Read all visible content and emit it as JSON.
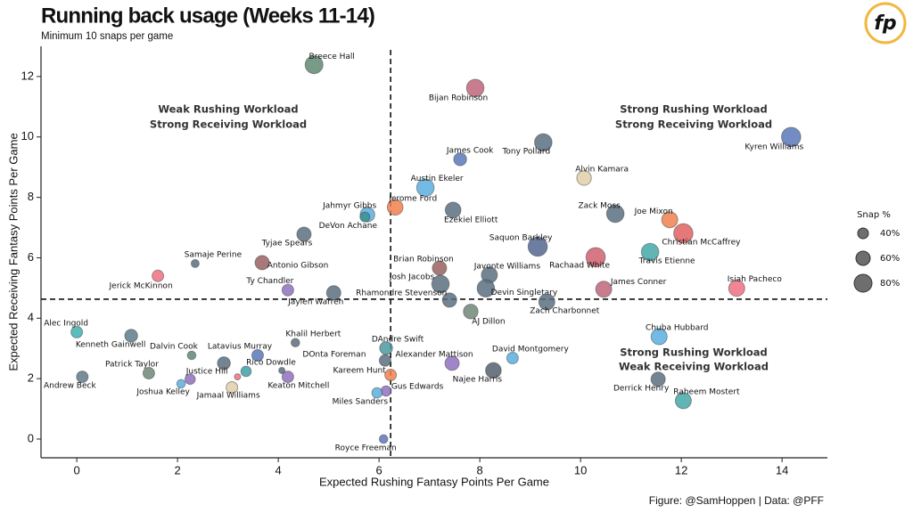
{
  "chart_data": {
    "type": "scatter",
    "title": "Running back usage (Weeks 11-14)",
    "subtitle": "Minimum 10 snaps per game",
    "source": "Figure: @SamHoppen | Data: @PFF",
    "logo": "fp",
    "x_label": "Expected Rushing Fantasy Points Per Game",
    "y_label": "Expected Receiving Fantasy Points Per Game",
    "xlim": [
      -0.71,
      14.9
    ],
    "ylim": [
      -0.62,
      13.0
    ],
    "xticks": [
      0,
      2,
      4,
      6,
      8,
      10,
      12,
      14
    ],
    "yticks": [
      0,
      2,
      4,
      6,
      8,
      10,
      12
    ],
    "reference_lines": {
      "x": 6.23,
      "y": 4.63
    },
    "quadrants": [
      [
        "Weak Rushing Workload",
        "Strong Receiving Workload"
      ],
      [
        "Strong Rushing Workload",
        "Strong Receiving Workload"
      ],
      [
        "Strong Rushing Workload",
        "Weak Receiving Workload"
      ]
    ],
    "size_legend": {
      "title": "Snap %",
      "values": [
        40,
        60,
        80
      ],
      "labels": [
        "40%",
        "60%",
        "80%"
      ]
    },
    "labels": [
      "Breece Hall",
      "Bijan Robinson",
      "Kyren Williams",
      "Tony Pollard",
      "James Cook",
      "Alvin Kamara",
      "Austin Ekeler",
      "Jerome Ford",
      "Ezekiel Elliott",
      "Jahmyr Gibbs",
      "DeVon Achane",
      "Zack Moss",
      "Joe Mixon",
      "Christian McCaffrey",
      "Tyjae Spears",
      "Saquon Barkley",
      "Travis Etienne",
      "Rachaad White",
      "Samaje Perine",
      "Antonio Gibson",
      "Brian Robinson",
      "Javonte Williams",
      "Jerick McKinnon",
      "Isiah Pacheco",
      "Josh Jacobs",
      "Devin Singletary",
      "James Conner",
      "Ty Chandler",
      "Jaylen Warren",
      "Rhamondre Stevenson",
      "Zach Charbonnet",
      "AJ Dillon",
      "Alec Ingold",
      "Kenneth Gainwell",
      "Chuba Hubbard",
      "Khalil Herbert",
      "DAndre Swift",
      "Dalvin Cook",
      "David Montgomery",
      "Latavius Murray",
      "Alexander Mattison",
      "Rico Dowdle",
      "DOnta Foreman",
      "Najee Harris",
      "Patrick Taylor",
      "Justice Hill",
      "Keaton Mitchell",
      "Andrew Beck",
      "Kareem Hunt",
      "Gus Edwards",
      "Miles Sanders",
      "Royce Freeman",
      "Jamaal Williams",
      "Joshua Kelley",
      "Derrick Henry",
      "Raheem Mostert",
      null,
      null,
      null
    ],
    "x": [
      4.71,
      7.91,
      14.18,
      9.26,
      7.61,
      10.07,
      6.92,
      6.32,
      7.47,
      5.77,
      5.72,
      10.69,
      11.77,
      12.04,
      4.51,
      9.15,
      11.38,
      10.3,
      2.35,
      3.68,
      7.2,
      8.19,
      1.61,
      13.1,
      7.22,
      8.12,
      10.46,
      4.19,
      5.1,
      7.4,
      9.33,
      7.82,
      0.0,
      1.08,
      11.56,
      4.34,
      6.14,
      2.28,
      8.65,
      3.59,
      7.45,
      3.36,
      6.12,
      8.27,
      1.43,
      2.92,
      4.19,
      0.11,
      6.23,
      6.14,
      5.96,
      6.09,
      3.08,
      2.07,
      11.54,
      12.04,
      2.25,
      3.19,
      4.07
    ],
    "values": [
      12.39,
      11.62,
      10.0,
      9.82,
      9.26,
      8.64,
      8.32,
      7.67,
      7.58,
      7.43,
      7.35,
      7.46,
      7.26,
      6.81,
      6.78,
      6.37,
      6.19,
      6.02,
      5.81,
      5.84,
      5.66,
      5.43,
      5.4,
      4.99,
      5.13,
      4.99,
      4.96,
      4.93,
      4.84,
      4.6,
      4.54,
      4.22,
      3.54,
      3.42,
      3.39,
      3.19,
      3.01,
      2.77,
      2.68,
      2.77,
      2.51,
      2.24,
      2.6,
      2.27,
      2.18,
      2.51,
      2.06,
      2.06,
      2.12,
      1.59,
      1.53,
      0.0,
      1.71,
      1.83,
      1.98,
      1.27,
      1.98,
      2.06,
      2.27
    ],
    "sizes": [
      80,
      78,
      88,
      78,
      52,
      62,
      78,
      68,
      68,
      62,
      35,
      78,
      70,
      88,
      60,
      88,
      78,
      88,
      25,
      60,
      60,
      70,
      45,
      70,
      78,
      78,
      70,
      45,
      60,
      60,
      70,
      62,
      45,
      52,
      70,
      28,
      52,
      28,
      45,
      45,
      60,
      38,
      45,
      68,
      45,
      52,
      45,
      45,
      45,
      38,
      38,
      28,
      45,
      28,
      60,
      70,
      38,
      15,
      15
    ],
    "colors": [
      "#5f8a72",
      "#c0657a",
      "#5a78b8",
      "#5a6e80",
      "#5a78b8",
      "#e0cfa8",
      "#5aaee0",
      "#f08050",
      "#5a6e80",
      "#5aaee0",
      "#3a9090",
      "#5a6e80",
      "#f08050",
      "#e06060",
      "#5a6e80",
      "#55678f",
      "#45a8a8",
      "#d06070",
      "#5a6e80",
      "#9a6060",
      "#9a6060",
      "#5a6e80",
      "#f07080",
      "#f07080",
      "#5a6e80",
      "#5a6e80",
      "#c0657a",
      "#9070c0",
      "#5a6e80",
      "#5a6e80",
      "#5a6e80",
      "#708878",
      "#40b0b0",
      "#607a88",
      "#5aaee0",
      "#5a6e80",
      "#4a9aa0",
      "#5f8a72",
      "#5aaee0",
      "#5a78b8",
      "#9070c0",
      "#40a0a8",
      "#5a6e80",
      "#556070",
      "#708878",
      "#5a6e80",
      "#9070c0",
      "#607a88",
      "#f08050",
      "#9070c0",
      "#5aaee0",
      "#5a78b8",
      "#e0cfa8",
      "#5aaee0",
      "#5a6e80",
      "#45a8a8",
      "#9070c0",
      "#f07080",
      "#5a6e80"
    ]
  }
}
